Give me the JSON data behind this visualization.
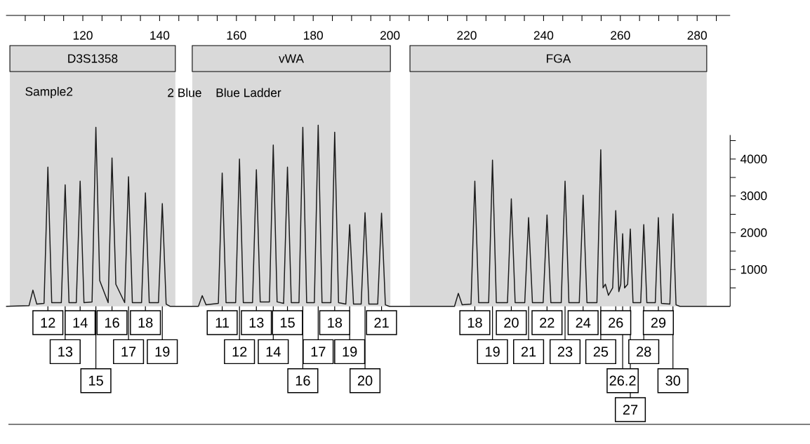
{
  "chart_data": {
    "type": "line",
    "title": "Sample2",
    "color": "#1a1a1a",
    "xlim": [
      100,
      288.6
    ],
    "ylim": [
      0,
      7900
    ],
    "xticks": [
      {
        "value": 105,
        "label": null
      },
      {
        "value": 110,
        "label": null
      },
      {
        "value": 115,
        "label": null
      },
      120,
      {
        "value": 125,
        "label": null
      },
      {
        "value": 130,
        "label": null
      },
      {
        "value": 135,
        "label": null
      },
      140,
      {
        "value": 145,
        "label": null
      },
      {
        "value": 150,
        "label": null
      },
      {
        "value": 155,
        "label": null
      },
      160,
      {
        "value": 165,
        "label": null
      },
      {
        "value": 170,
        "label": null
      },
      {
        "value": 175,
        "label": null
      },
      180,
      {
        "value": 185,
        "label": null
      },
      {
        "value": 190,
        "label": null
      },
      {
        "value": 195,
        "label": null
      },
      200,
      {
        "value": 205,
        "label": null
      },
      {
        "value": 210,
        "label": null
      },
      {
        "value": 215,
        "label": null
      },
      220,
      {
        "value": 225,
        "label": null
      },
      {
        "value": 230,
        "label": null
      },
      {
        "value": 235,
        "label": null
      },
      240,
      {
        "value": 245,
        "label": null
      },
      {
        "value": 250,
        "label": null
      },
      {
        "value": 255,
        "label": null
      },
      260,
      {
        "value": 265,
        "label": null
      },
      {
        "value": 270,
        "label": null
      },
      {
        "value": 275,
        "label": null
      },
      280,
      {
        "value": 285,
        "label": null
      }
    ],
    "yticks": [
      {
        "value": 500,
        "label": null
      },
      1000,
      {
        "value": 1500,
        "label": null
      },
      2000,
      {
        "value": 2500,
        "label": null
      },
      3000,
      {
        "value": 3500,
        "label": null
      },
      4000,
      {
        "value": 4500,
        "label": null
      }
    ],
    "bands": [
      {
        "axis": "x",
        "from": 101,
        "to": 144.1,
        "label": "D3S1358",
        "color": "#d9d9d9"
      },
      {
        "axis": "x",
        "from": 148.5,
        "to": 200.1,
        "label": "vWA",
        "color": "#d9d9d9"
      },
      {
        "axis": "x",
        "from": 205.2,
        "to": 282.5,
        "label": "FGA",
        "color": "#d9d9d9"
      }
    ],
    "x": [
      100,
      106.0,
      107.0,
      108.0,
      109.9,
      110.9,
      111.9,
      114.4,
      115.4,
      116.4,
      118.3,
      119.3,
      120.3,
      122.4,
      123.4,
      124.4,
      126.6,
      127.6,
      128.6,
      130.9,
      131.9,
      132.9,
      135.3,
      136.3,
      137.3,
      139.7,
      140.7,
      141.7,
      142.7,
      150.1,
      151.1,
      152.1,
      155.3,
      156.3,
      157.3,
      159.8,
      160.8,
      161.8,
      164.2,
      165.2,
      166.2,
      168.6,
      169.6,
      170.6,
      172.3,
      173.3,
      174.3,
      176.3,
      177.3,
      178.3,
      180.3,
      181.3,
      182.3,
      184.6,
      185.6,
      186.6,
      188.5,
      189.5,
      190.5,
      192.5,
      193.5,
      194.5,
      196.8,
      197.8,
      198.8,
      199.8,
      216.8,
      217.8,
      218.8,
      221.1,
      222.1,
      223.1,
      225.7,
      226.7,
      227.7,
      230.6,
      231.6,
      232.6,
      235.1,
      236.1,
      237.1,
      239.9,
      240.9,
      241.9,
      244.6,
      245.6,
      246.6,
      249.3,
      250.3,
      251.3,
      253.9,
      254.9,
      255.5,
      256.1,
      256.9,
      258.0,
      258.8,
      259.6,
      260.1,
      260.6,
      261.1,
      261.9,
      262.6,
      263.3,
      265.3,
      266.1,
      266.9,
      269.1,
      269.9,
      270.7,
      272.9,
      273.7,
      274.5,
      275.5,
      288.6
    ],
    "values": [
      0,
      20,
      440,
      60,
      80,
      3780,
      100,
      100,
      3300,
      100,
      100,
      3400,
      100,
      120,
      4860,
      700,
      100,
      4030,
      600,
      100,
      3520,
      100,
      100,
      3080,
      100,
      100,
      2790,
      60,
      0,
      0,
      290,
      40,
      80,
      3620,
      100,
      100,
      4000,
      100,
      100,
      3710,
      120,
      120,
      4380,
      120,
      80,
      3780,
      100,
      100,
      4860,
      100,
      100,
      4920,
      100,
      100,
      4730,
      100,
      60,
      2220,
      60,
      60,
      2540,
      60,
      60,
      2530,
      40,
      0,
      0,
      350,
      40,
      60,
      3400,
      100,
      100,
      3970,
      100,
      100,
      2920,
      100,
      100,
      2410,
      100,
      100,
      2480,
      100,
      100,
      3400,
      100,
      100,
      3020,
      100,
      100,
      4250,
      500,
      600,
      300,
      500,
      2600,
      400,
      600,
      1970,
      500,
      600,
      2100,
      100,
      100,
      2220,
      100,
      100,
      2410,
      80,
      60,
      2510,
      40,
      0,
      0
    ],
    "annotations": [
      "2 Blue",
      "Blue Ladder",
      {
        "text": "12",
        "x": 110.9,
        "y": 0
      },
      {
        "text": "13",
        "x": 115.4,
        "y": 0
      },
      {
        "text": "14",
        "x": 119.3,
        "y": 0
      },
      {
        "text": "15",
        "x": 123.4,
        "y": 0
      },
      {
        "text": "16",
        "x": 127.6,
        "y": 0
      },
      {
        "text": "17",
        "x": 131.9,
        "y": 0
      },
      {
        "text": "18",
        "x": 136.3,
        "y": 0
      },
      {
        "text": "19",
        "x": 140.7,
        "y": 0
      },
      {
        "text": "11",
        "x": 156.3,
        "y": 0
      },
      {
        "text": "12",
        "x": 160.8,
        "y": 0
      },
      {
        "text": "13",
        "x": 165.2,
        "y": 0
      },
      {
        "text": "14",
        "x": 169.6,
        "y": 0
      },
      {
        "text": "15",
        "x": 173.3,
        "y": 0
      },
      {
        "text": "16",
        "x": 177.3,
        "y": 0
      },
      {
        "text": "17",
        "x": 181.3,
        "y": 0
      },
      {
        "text": "18",
        "x": 185.6,
        "y": 0
      },
      {
        "text": "19",
        "x": 189.5,
        "y": 0
      },
      {
        "text": "20",
        "x": 193.5,
        "y": 0
      },
      {
        "text": "21",
        "x": 197.8,
        "y": 0
      },
      {
        "text": "18",
        "x": 222.1,
        "y": 0
      },
      {
        "text": "19",
        "x": 226.7,
        "y": 0
      },
      {
        "text": "20",
        "x": 231.6,
        "y": 0
      },
      {
        "text": "21",
        "x": 236.1,
        "y": 0
      },
      {
        "text": "22",
        "x": 240.9,
        "y": 0
      },
      {
        "text": "23",
        "x": 245.6,
        "y": 0
      },
      {
        "text": "24",
        "x": 250.3,
        "y": 0
      },
      {
        "text": "25",
        "x": 254.9,
        "y": 0
      },
      {
        "text": "26",
        "x": 258.8,
        "y": 0
      },
      {
        "text": "26.2",
        "x": 260.6,
        "y": 0
      },
      {
        "text": "27",
        "x": 262.6,
        "y": 0
      },
      {
        "text": "28",
        "x": 266.1,
        "y": 0
      },
      {
        "text": "29",
        "x": 269.9,
        "y": 0
      },
      {
        "text": "30",
        "x": 273.7,
        "y": 0
      }
    ]
  }
}
